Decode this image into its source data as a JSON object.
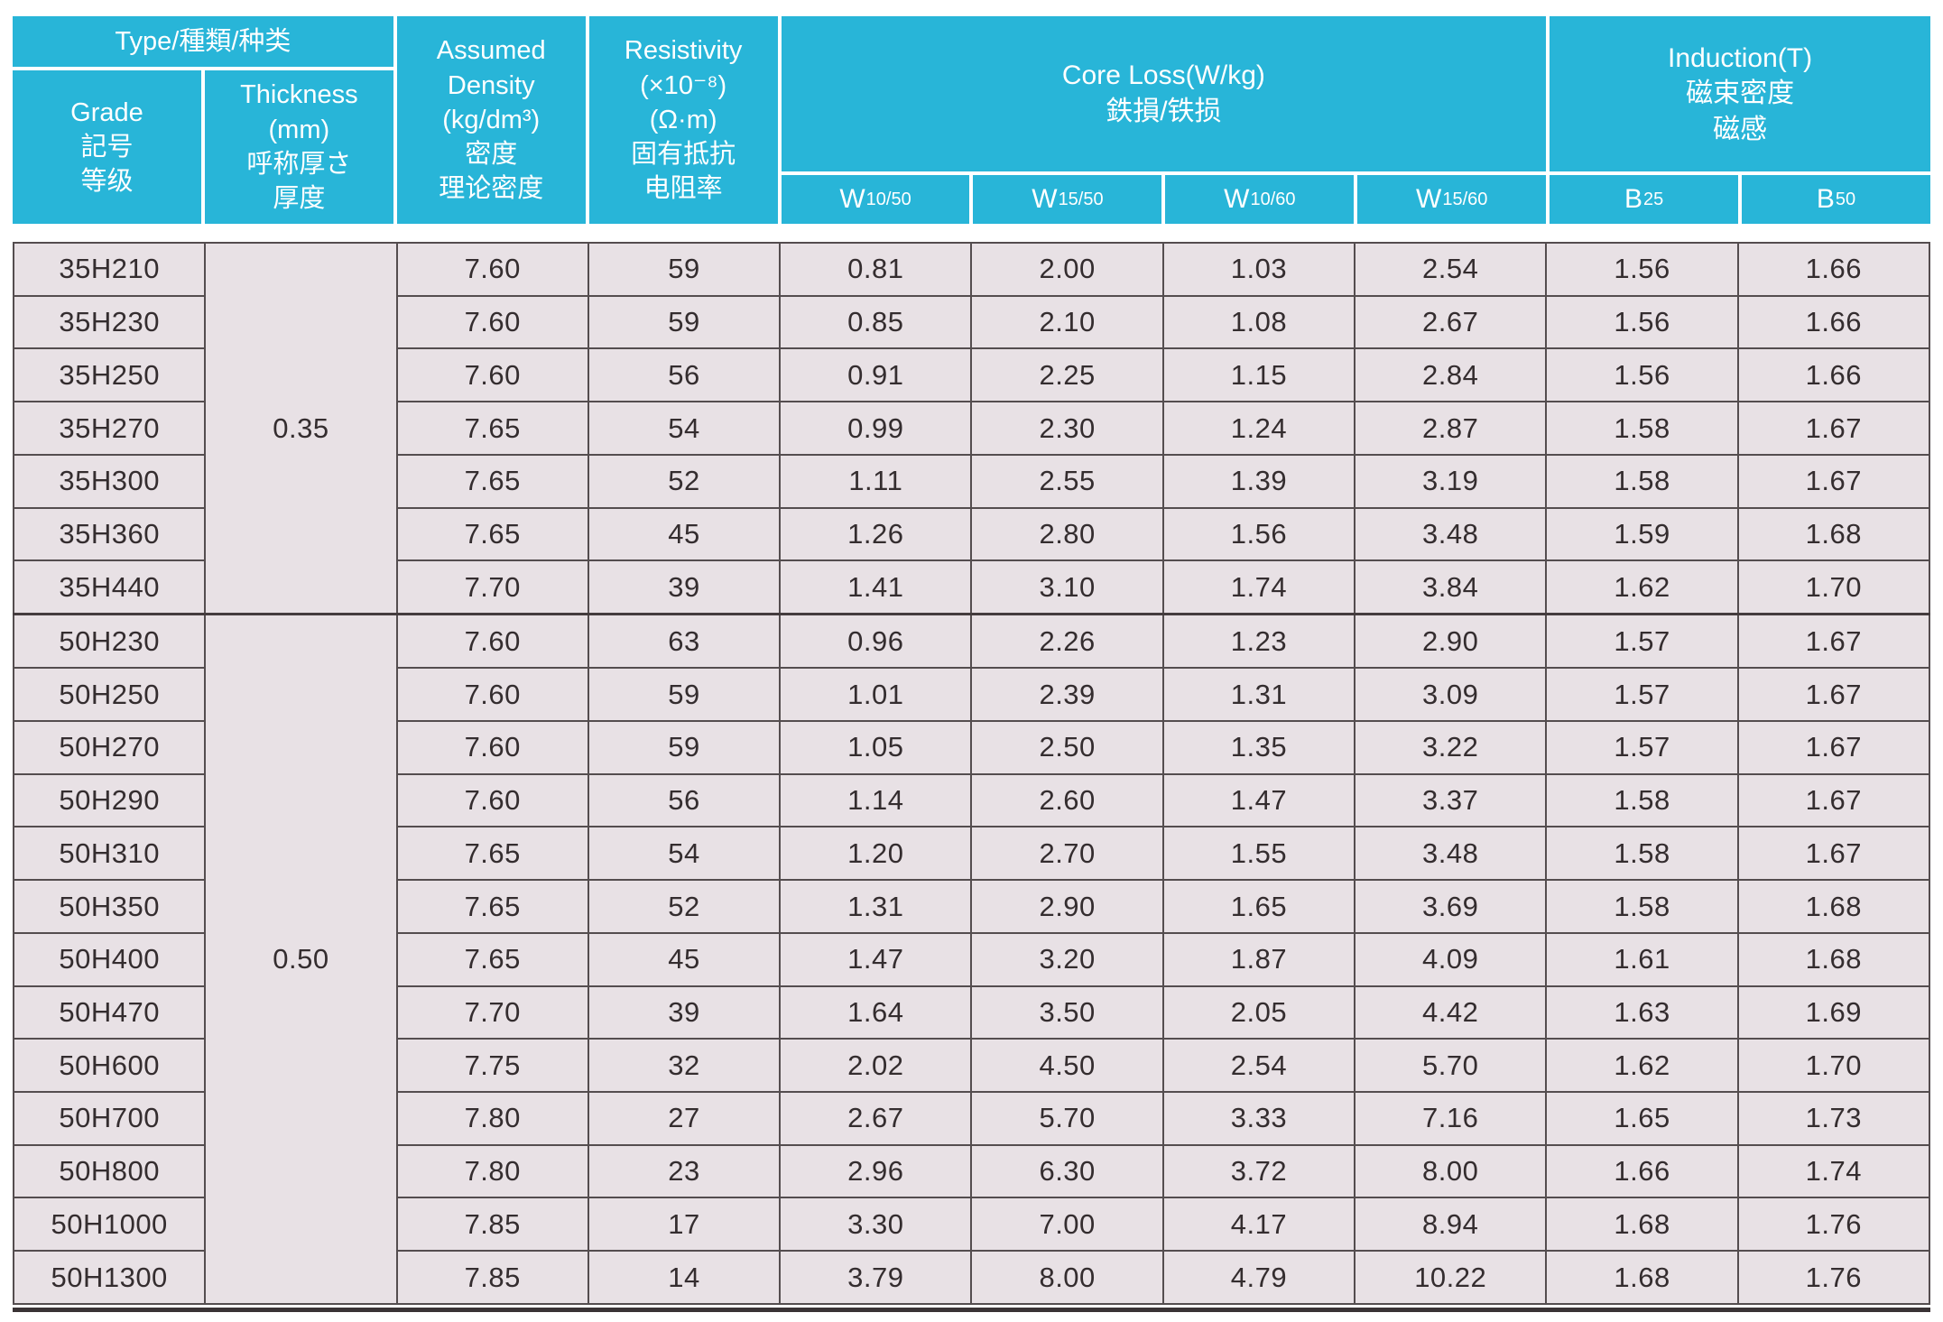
{
  "title": "Electrical steel grade specification table",
  "colors": {
    "header_bg": "#28b5d8",
    "header_text": "#ffffff",
    "body_bg": "#e8e1e5",
    "border": "#544d4f",
    "text": "#342d2f"
  },
  "header": {
    "type": "Type/種類/种类",
    "grade": "Grade\n記号\n等级",
    "thickness": "Thickness\n(mm)\n呼称厚さ\n厚度",
    "density": "Assumed\nDensity\n(kg/dm³)\n密度\n理论密度",
    "resistivity": "Resistivity\n(×10⁻⁸)\n(Ω·m)\n固有抵抗\n电阻率",
    "core_loss": "Core Loss(W/kg)\n鉄損/铁损",
    "induction": "Induction(T)\n磁束密度\n磁感",
    "w_cols": [
      {
        "base": "W",
        "sub": "10/50"
      },
      {
        "base": "W",
        "sub": "15/50"
      },
      {
        "base": "W",
        "sub": "10/60"
      },
      {
        "base": "W",
        "sub": "15/60"
      }
    ],
    "b_cols": [
      {
        "base": "B",
        "sub": "25"
      },
      {
        "base": "B",
        "sub": "50"
      }
    ]
  },
  "groups": [
    {
      "thickness": "0.35",
      "rows": [
        [
          "35H210",
          "7.60",
          "59",
          "0.81",
          "2.00",
          "1.03",
          "2.54",
          "1.56",
          "1.66"
        ],
        [
          "35H230",
          "7.60",
          "59",
          "0.85",
          "2.10",
          "1.08",
          "2.67",
          "1.56",
          "1.66"
        ],
        [
          "35H250",
          "7.60",
          "56",
          "0.91",
          "2.25",
          "1.15",
          "2.84",
          "1.56",
          "1.66"
        ],
        [
          "35H270",
          "7.65",
          "54",
          "0.99",
          "2.30",
          "1.24",
          "2.87",
          "1.58",
          "1.67"
        ],
        [
          "35H300",
          "7.65",
          "52",
          "1.11",
          "2.55",
          "1.39",
          "3.19",
          "1.58",
          "1.67"
        ],
        [
          "35H360",
          "7.65",
          "45",
          "1.26",
          "2.80",
          "1.56",
          "3.48",
          "1.59",
          "1.68"
        ],
        [
          "35H440",
          "7.70",
          "39",
          "1.41",
          "3.10",
          "1.74",
          "3.84",
          "1.62",
          "1.70"
        ]
      ]
    },
    {
      "thickness": "0.50",
      "rows": [
        [
          "50H230",
          "7.60",
          "63",
          "0.96",
          "2.26",
          "1.23",
          "2.90",
          "1.57",
          "1.67"
        ],
        [
          "50H250",
          "7.60",
          "59",
          "1.01",
          "2.39",
          "1.31",
          "3.09",
          "1.57",
          "1.67"
        ],
        [
          "50H270",
          "7.60",
          "59",
          "1.05",
          "2.50",
          "1.35",
          "3.22",
          "1.57",
          "1.67"
        ],
        [
          "50H290",
          "7.60",
          "56",
          "1.14",
          "2.60",
          "1.47",
          "3.37",
          "1.58",
          "1.67"
        ],
        [
          "50H310",
          "7.65",
          "54",
          "1.20",
          "2.70",
          "1.55",
          "3.48",
          "1.58",
          "1.67"
        ],
        [
          "50H350",
          "7.65",
          "52",
          "1.31",
          "2.90",
          "1.65",
          "3.69",
          "1.58",
          "1.68"
        ],
        [
          "50H400",
          "7.65",
          "45",
          "1.47",
          "3.20",
          "1.87",
          "4.09",
          "1.61",
          "1.68"
        ],
        [
          "50H470",
          "7.70",
          "39",
          "1.64",
          "3.50",
          "2.05",
          "4.42",
          "1.63",
          "1.69"
        ],
        [
          "50H600",
          "7.75",
          "32",
          "2.02",
          "4.50",
          "2.54",
          "5.70",
          "1.62",
          "1.70"
        ],
        [
          "50H700",
          "7.80",
          "27",
          "2.67",
          "5.70",
          "3.33",
          "7.16",
          "1.65",
          "1.73"
        ],
        [
          "50H800",
          "7.80",
          "23",
          "2.96",
          "6.30",
          "3.72",
          "8.00",
          "1.66",
          "1.74"
        ],
        [
          "50H1000",
          "7.85",
          "17",
          "3.30",
          "7.00",
          "4.17",
          "8.94",
          "1.68",
          "1.76"
        ],
        [
          "50H1300",
          "7.85",
          "14",
          "3.79",
          "8.00",
          "4.79",
          "10.22",
          "1.68",
          "1.76"
        ]
      ]
    }
  ]
}
